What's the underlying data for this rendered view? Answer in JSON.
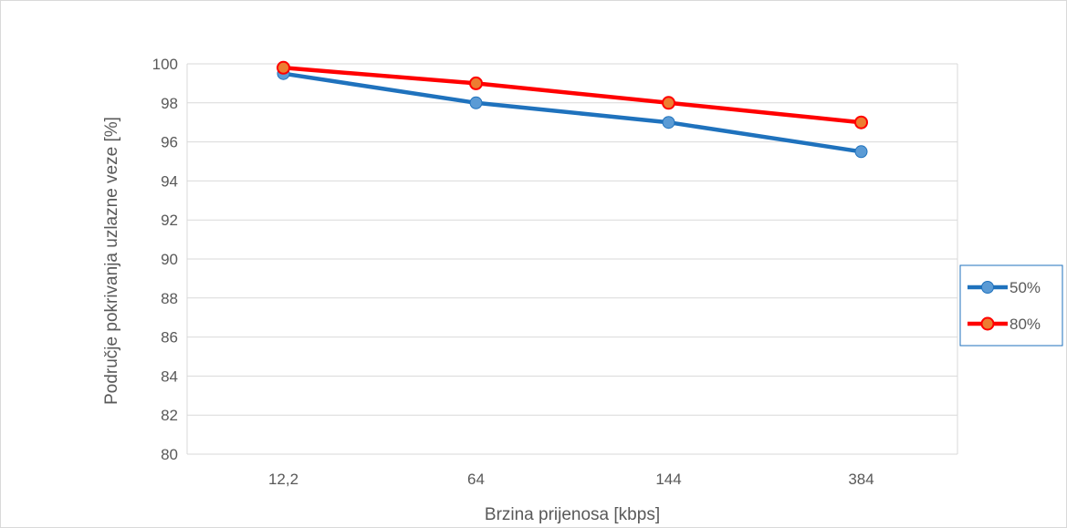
{
  "chart_data": {
    "type": "line",
    "categories": [
      "12,2",
      "64",
      "144",
      "384"
    ],
    "series": [
      {
        "name": "50%",
        "values": [
          99.5,
          98,
          97,
          95.5
        ],
        "color": "#1F72BD",
        "marker_color": "#5B9BD5"
      },
      {
        "name": "80%",
        "values": [
          99.8,
          99,
          98,
          97
        ],
        "color": "#FF0000",
        "marker_color": "#ED7D31"
      }
    ],
    "title": "",
    "xlabel": "Brzina prijenosa [kbps]",
    "ylabel": "Područje pokrivanja uzlazne veze [%]",
    "ylim": [
      80,
      100
    ],
    "ytick_step": 2,
    "grid": true,
    "legend_position": "right"
  }
}
